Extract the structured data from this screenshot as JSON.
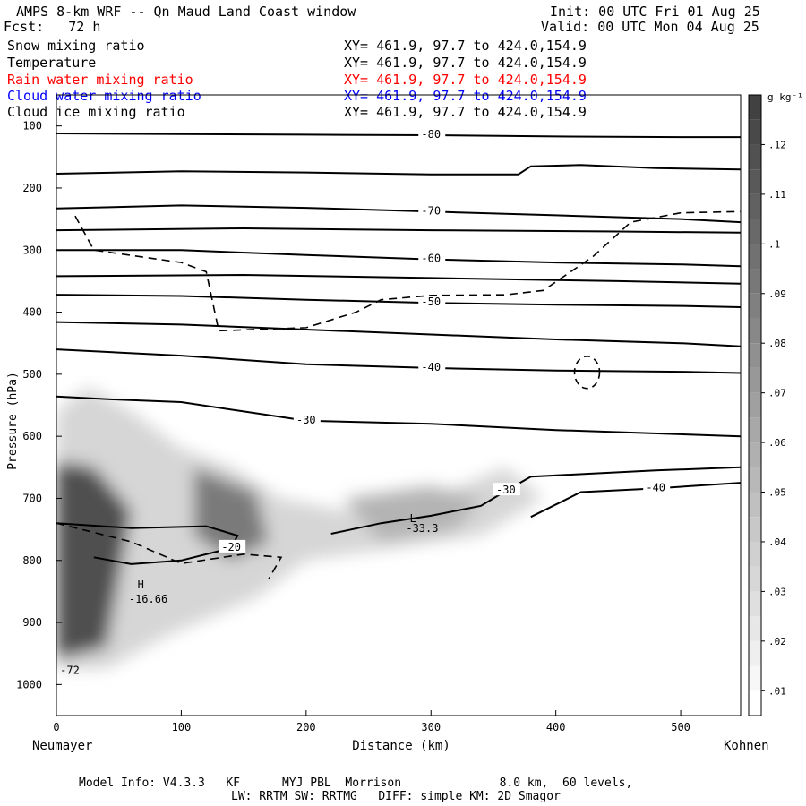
{
  "header": {
    "title": "AMPS 8-km WRF -- Qn Maud Land Coast window",
    "init": "Init: 00 UTC Fri 01 Aug 25",
    "fcst": "Fcst:   72 h",
    "valid": "Valid: 00 UTC Mon 04 Aug 25"
  },
  "fields": [
    {
      "name": "Snow mixing ratio",
      "xy": "XY= 461.9, 97.7 to 424.0,154.9",
      "color": "#000000"
    },
    {
      "name": "Temperature",
      "xy": "XY= 461.9, 97.7 to 424.0,154.9",
      "color": "#000000"
    },
    {
      "name": "Rain water mixing ratio",
      "xy": "XY= 461.9, 97.7 to 424.0,154.9",
      "color": "#ff0000"
    },
    {
      "name": "Cloud water mixing ratio",
      "xy": "XY= 461.9, 97.7 to 424.0,154.9",
      "color": "#0000ff"
    },
    {
      "name": "Cloud ice mixing ratio",
      "xy": "XY= 461.9, 97.7 to 424.0,154.9",
      "color": "#000000"
    }
  ],
  "footer": {
    "line1": "Model Info: V4.3.3   KF      MYJ PBL  Morrison              8.0 km,  60 levels,",
    "line2": "LW: RRTM SW: RRTMG   DIFF: simple KM: 2D Smagor"
  },
  "chart_data": {
    "type": "heatmap",
    "xlabel": "Distance (km)",
    "ylabel": "Pressure (hPa)",
    "x_left_label": "Neumayer",
    "x_right_label": "Kohnen",
    "xlim": [
      0,
      548
    ],
    "ylim": [
      1050,
      50
    ],
    "xticks": [
      0,
      100,
      200,
      300,
      400,
      500
    ],
    "yticks": [
      100,
      200,
      300,
      400,
      500,
      600,
      700,
      800,
      900,
      1000
    ],
    "colorbar": {
      "unit": "g kg⁻¹",
      "ticks": [
        ".01",
        ".02",
        ".03",
        ".04",
        ".05",
        ".06",
        ".07",
        ".08",
        ".09",
        ".1",
        ".11",
        ".12"
      ],
      "levels": [
        0.005,
        0.01,
        0.015,
        0.02,
        0.025,
        0.03,
        0.035,
        0.04,
        0.045,
        0.05,
        0.055,
        0.06,
        0.065,
        0.07,
        0.075,
        0.08,
        0.085,
        0.09,
        0.095,
        0.1,
        0.105,
        0.11,
        0.115,
        0.12,
        0.125,
        0.13
      ]
    },
    "temperature_contours": [
      {
        "label": "-80",
        "points": [
          [
            0,
            112
          ],
          [
            100,
            113
          ],
          [
            200,
            114
          ],
          [
            300,
            115
          ],
          [
            400,
            117
          ],
          [
            500,
            118
          ],
          [
            548,
            118
          ]
        ]
      },
      {
        "label": "",
        "points": [
          [
            0,
            177
          ],
          [
            100,
            173
          ],
          [
            200,
            175
          ],
          [
            300,
            178
          ],
          [
            370,
            178
          ],
          [
            380,
            165
          ],
          [
            420,
            163
          ],
          [
            480,
            168
          ],
          [
            548,
            170
          ]
        ]
      },
      {
        "label": "-70",
        "points": [
          [
            0,
            233
          ],
          [
            100,
            228
          ],
          [
            200,
            232
          ],
          [
            300,
            238
          ],
          [
            400,
            244
          ],
          [
            500,
            250
          ],
          [
            548,
            255
          ]
        ]
      },
      {
        "label": "",
        "points": [
          [
            0,
            268
          ],
          [
            150,
            265
          ],
          [
            300,
            268
          ],
          [
            450,
            270
          ],
          [
            548,
            272
          ]
        ]
      },
      {
        "label": "-60",
        "points": [
          [
            0,
            300
          ],
          [
            100,
            300
          ],
          [
            200,
            308
          ],
          [
            300,
            315
          ],
          [
            400,
            320
          ],
          [
            500,
            323
          ],
          [
            548,
            326
          ]
        ]
      },
      {
        "label": "",
        "points": [
          [
            0,
            342
          ],
          [
            150,
            340
          ],
          [
            300,
            345
          ],
          [
            450,
            350
          ],
          [
            548,
            354
          ]
        ]
      },
      {
        "label": "-50",
        "points": [
          [
            0,
            372
          ],
          [
            100,
            374
          ],
          [
            200,
            380
          ],
          [
            300,
            385
          ],
          [
            400,
            388
          ],
          [
            500,
            390
          ],
          [
            548,
            392
          ]
        ]
      },
      {
        "label": "",
        "points": [
          [
            0,
            416
          ],
          [
            100,
            420
          ],
          [
            200,
            428
          ],
          [
            300,
            436
          ],
          [
            400,
            444
          ],
          [
            500,
            450
          ],
          [
            548,
            455
          ]
        ]
      },
      {
        "label": "-40",
        "points": [
          [
            0,
            460
          ],
          [
            100,
            470
          ],
          [
            200,
            484
          ],
          [
            300,
            490
          ],
          [
            400,
            494
          ],
          [
            500,
            496
          ],
          [
            548,
            498
          ]
        ]
      },
      {
        "label": "-30",
        "points": [
          [
            0,
            536
          ],
          [
            50,
            541
          ],
          [
            100,
            545
          ],
          [
            150,
            560
          ],
          [
            200,
            575
          ],
          [
            300,
            580
          ],
          [
            400,
            590
          ],
          [
            548,
            600
          ]
        ]
      },
      {
        "label": "-40",
        "points": [
          [
            380,
            730
          ],
          [
            420,
            690
          ],
          [
            480,
            684
          ],
          [
            548,
            675
          ]
        ]
      },
      {
        "label": "-30",
        "points": [
          [
            220,
            757
          ],
          [
            260,
            740
          ],
          [
            300,
            728
          ],
          [
            340,
            712
          ],
          [
            360,
            688
          ],
          [
            380,
            665
          ],
          [
            480,
            655
          ],
          [
            548,
            650
          ]
        ]
      },
      {
        "label": "-20",
        "points": [
          [
            0,
            740
          ],
          [
            60,
            748
          ],
          [
            120,
            745
          ],
          [
            145,
            760
          ],
          [
            140,
            780
          ],
          [
            100,
            800
          ],
          [
            60,
            806
          ],
          [
            30,
            795
          ]
        ]
      }
    ],
    "annotations": [
      {
        "text": "H",
        "x": 65,
        "y": 845
      },
      {
        "text": "-16.66",
        "x": 58,
        "y": 868
      },
      {
        "text": "L",
        "x": 283,
        "y": 738
      },
      {
        "text": "-33.3",
        "x": 280,
        "y": 754
      },
      {
        "text": "-72",
        "x": 3,
        "y": 983
      }
    ]
  }
}
